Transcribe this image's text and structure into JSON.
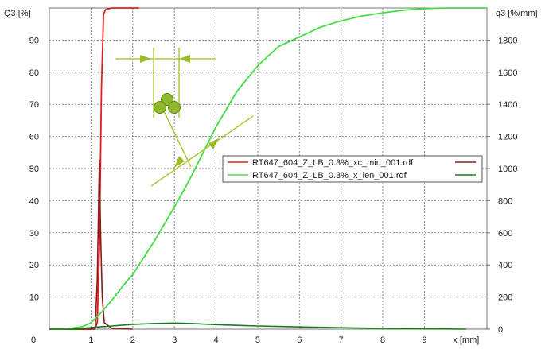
{
  "chart_data": {
    "type": "line",
    "title": "",
    "xlabel": "x [mm]",
    "ylabel_left": "Q3 [%]",
    "ylabel_right": "q3 [%/mm]",
    "xlim": [
      0,
      10.5
    ],
    "ylim_left": [
      0,
      100
    ],
    "ylim_right": [
      0,
      2000
    ],
    "x_ticks": [
      "0",
      "1",
      "2",
      "3",
      "4",
      "5",
      "6",
      "7",
      "8",
      "9",
      "x [mm]"
    ],
    "y_left_ticks": [
      "10",
      "20",
      "30",
      "40",
      "50",
      "60",
      "70",
      "80",
      "90"
    ],
    "y_right_ticks": [
      "0",
      "200",
      "400",
      "600",
      "800",
      "1000",
      "1200",
      "1400",
      "1600",
      "1800"
    ],
    "grid": true,
    "legend_position": "center-right",
    "series": [
      {
        "name": "RT647_604_Z_LB_0.3%_xc_min_001.rdf",
        "kind": "cumulative",
        "axis": "left",
        "color": "#e02020",
        "points": [
          [
            0,
            0
          ],
          [
            1.0,
            0
          ],
          [
            1.1,
            0.3
          ],
          [
            1.15,
            2
          ],
          [
            1.2,
            25
          ],
          [
            1.25,
            75
          ],
          [
            1.3,
            98
          ],
          [
            1.35,
            99.5
          ],
          [
            1.5,
            100
          ],
          [
            2.15,
            100
          ]
        ]
      },
      {
        "name": "RT647_604_Z_LB_0.3%_xc_min_001.rdf",
        "kind": "density",
        "axis": "right",
        "color": "#8b1a1a",
        "points": [
          [
            0,
            0
          ],
          [
            1.1,
            0
          ],
          [
            1.15,
            300
          ],
          [
            1.2,
            1050
          ],
          [
            1.23,
            600
          ],
          [
            1.27,
            200
          ],
          [
            1.32,
            40
          ],
          [
            1.5,
            5
          ],
          [
            2.0,
            0
          ]
        ]
      },
      {
        "name": "RT647_604_Z_LB_0.3%_x_len_001.rdf",
        "kind": "cumulative",
        "axis": "left",
        "color": "#44dd44",
        "points": [
          [
            0,
            0
          ],
          [
            0.4,
            0
          ],
          [
            0.8,
            0.8
          ],
          [
            1.0,
            2
          ],
          [
            1.2,
            4.5
          ],
          [
            1.5,
            9
          ],
          [
            1.8,
            14
          ],
          [
            2.0,
            17
          ],
          [
            2.5,
            27
          ],
          [
            3.0,
            38
          ],
          [
            3.3,
            45
          ],
          [
            3.5,
            50
          ],
          [
            4.0,
            63
          ],
          [
            4.5,
            74
          ],
          [
            5.0,
            82
          ],
          [
            5.5,
            88
          ],
          [
            6.0,
            91
          ],
          [
            6.5,
            94
          ],
          [
            7.0,
            96
          ],
          [
            7.5,
            97.5
          ],
          [
            8.0,
            98.5
          ],
          [
            8.5,
            99.3
          ],
          [
            9.0,
            99.8
          ],
          [
            9.5,
            100
          ],
          [
            10.5,
            100
          ]
        ]
      },
      {
        "name": "RT647_604_Z_LB_0.3%_x_len_001.rdf",
        "kind": "density",
        "axis": "right",
        "color": "#1a7a1a",
        "points": [
          [
            0,
            0
          ],
          [
            0.6,
            0
          ],
          [
            1.0,
            10
          ],
          [
            1.5,
            20
          ],
          [
            2.0,
            30
          ],
          [
            2.5,
            35
          ],
          [
            3.0,
            38
          ],
          [
            3.5,
            34
          ],
          [
            4.0,
            28
          ],
          [
            4.5,
            24
          ],
          [
            5.0,
            20
          ],
          [
            6.0,
            14
          ],
          [
            7.0,
            9
          ],
          [
            8.0,
            5
          ],
          [
            9.0,
            2
          ],
          [
            10.0,
            0
          ]
        ]
      }
    ]
  }
}
